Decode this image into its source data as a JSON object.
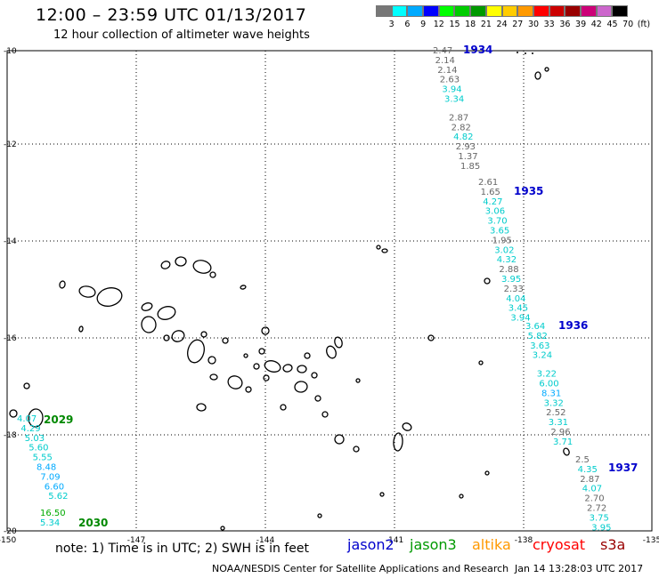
{
  "title": "12:00 – 23:59 UTC 01/13/2017",
  "subtitle": "12 hour collection of altimeter wave heights",
  "color_scale": {
    "swatches": [
      "#777777",
      "#00ffff",
      "#00aaff",
      "#0000ff",
      "#00ff00",
      "#00cc00",
      "#009900",
      "#ffff00",
      "#ffcc00",
      "#ff9900",
      "#ff0000",
      "#cc0000",
      "#990000",
      "#cc0077",
      "#cc66cc",
      "#000000"
    ],
    "labels": [
      "3",
      "6",
      "9",
      "12",
      "15",
      "18",
      "21",
      "24",
      "27",
      "30",
      "33",
      "36",
      "39",
      "42",
      "45",
      "70",
      "(ft)"
    ]
  },
  "axes": {
    "lat_labels": [
      "-10",
      "-12",
      "-14",
      "-16",
      "-18",
      "-20"
    ],
    "lon_labels": [
      "-150",
      "-147",
      "-144",
      "-141",
      "-138",
      "-135"
    ]
  },
  "tracks": [
    {
      "name": "1934",
      "name_color": "#0000cc",
      "points": [
        {
          "v": "2.47",
          "c": "#666666"
        },
        {
          "v": "2.14",
          "c": "#666666"
        },
        {
          "v": "2.14",
          "c": "#666666"
        },
        {
          "v": "2.63",
          "c": "#666666"
        },
        {
          "v": "3.94",
          "c": "#00cccc"
        },
        {
          "v": "3.34",
          "c": "#00cccc"
        },
        {
          "v": "2.87",
          "c": "#666666"
        },
        {
          "v": "2.82",
          "c": "#666666"
        },
        {
          "v": "4.82",
          "c": "#00cccc"
        },
        {
          "v": "2.93",
          "c": "#666666"
        },
        {
          "v": "1.37",
          "c": "#666666"
        },
        {
          "v": "1.85",
          "c": "#666666"
        }
      ]
    },
    {
      "name": "1935",
      "name_color": "#0000cc",
      "points": [
        {
          "v": "2.61",
          "c": "#666666"
        },
        {
          "v": "1.65",
          "c": "#666666"
        },
        {
          "v": "4.27",
          "c": "#00cccc"
        },
        {
          "v": "3.06",
          "c": "#00cccc"
        },
        {
          "v": "3.70",
          "c": "#00cccc"
        },
        {
          "v": "3.65",
          "c": "#00cccc"
        },
        {
          "v": "1.95",
          "c": "#666666"
        },
        {
          "v": "3.02",
          "c": "#00cccc"
        },
        {
          "v": "4.32",
          "c": "#00cccc"
        },
        {
          "v": "2.88",
          "c": "#666666"
        },
        {
          "v": "3.95",
          "c": "#00cccc"
        },
        {
          "v": "2.33",
          "c": "#666666"
        },
        {
          "v": "4.04",
          "c": "#00cccc"
        },
        {
          "v": "3.45",
          "c": "#00cccc"
        },
        {
          "v": "3.94",
          "c": "#00cccc"
        }
      ]
    },
    {
      "name": "1936",
      "name_color": "#0000cc",
      "points": [
        {
          "v": "3.64",
          "c": "#00cccc"
        },
        {
          "v": "5.82",
          "c": "#00cccc"
        },
        {
          "v": "3.63",
          "c": "#00cccc"
        },
        {
          "v": "3.24",
          "c": "#00cccc"
        },
        {
          "v": "3.22",
          "c": "#00cccc"
        },
        {
          "v": "6.00",
          "c": "#00cccc"
        },
        {
          "v": "8.31",
          "c": "#00aaff"
        },
        {
          "v": "3.32",
          "c": "#00cccc"
        },
        {
          "v": "2.52",
          "c": "#666666"
        },
        {
          "v": "3.31",
          "c": "#00cccc"
        },
        {
          "v": "2.96",
          "c": "#666666"
        },
        {
          "v": "3.71",
          "c": "#00cccc"
        }
      ]
    },
    {
      "name": "1937",
      "name_color": "#0000cc",
      "points": [
        {
          "v": "2.5",
          "c": "#666666"
        },
        {
          "v": "4.35",
          "c": "#00cccc"
        },
        {
          "v": "2.87",
          "c": "#666666"
        },
        {
          "v": "4.07",
          "c": "#00cccc"
        },
        {
          "v": "2.70",
          "c": "#666666"
        },
        {
          "v": "2.72",
          "c": "#666666"
        },
        {
          "v": "3.75",
          "c": "#00cccc"
        },
        {
          "v": "3.95",
          "c": "#00cccc"
        }
      ]
    },
    {
      "name": "2029",
      "name_color": "#008800",
      "points": [
        {
          "v": "4.07",
          "c": "#00cccc"
        },
        {
          "v": "4.29",
          "c": "#00cccc"
        },
        {
          "v": "5.03",
          "c": "#00cccc"
        },
        {
          "v": "5.60",
          "c": "#00cccc"
        },
        {
          "v": "5.55",
          "c": "#00cccc"
        },
        {
          "v": "8.48",
          "c": "#00aaff"
        },
        {
          "v": "7.09",
          "c": "#00aaff"
        },
        {
          "v": "6.60",
          "c": "#00aaff"
        },
        {
          "v": "5.62",
          "c": "#00cccc"
        }
      ]
    },
    {
      "name": "2030",
      "name_color": "#008800",
      "points": [
        {
          "v": "16.50",
          "c": "#00aa00"
        },
        {
          "v": "5.34",
          "c": "#00cccc"
        }
      ]
    }
  ],
  "note": "note: 1) Time is in UTC; 2) SWH is in feet",
  "satellites": [
    {
      "name": "jason2",
      "color": "#0000cc"
    },
    {
      "name": "jason3",
      "color": "#009900"
    },
    {
      "name": "altika",
      "color": "#ff9900"
    },
    {
      "name": "cryosat",
      "color": "#ff0000"
    },
    {
      "name": "s3a",
      "color": "#990000"
    }
  ],
  "footer": "NOAA/NESDIS Center for Satellite Applications and Research",
  "timestamp": "Jan 14 13:28:03 UTC 2017"
}
